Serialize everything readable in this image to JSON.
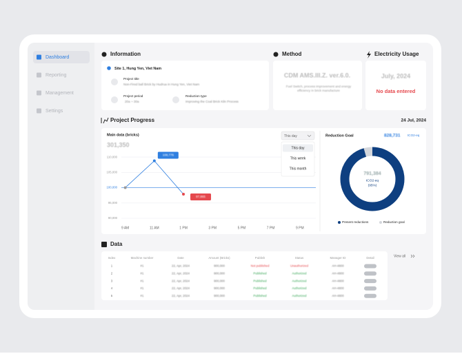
{
  "sidebar": {
    "items": [
      "Dashboard",
      "Reporting",
      "Management",
      "Settings"
    ],
    "active": 0
  },
  "information": {
    "title": "Information",
    "site": "Site 1, Hung Yen, Viet Nam",
    "project_title_label": "Project title",
    "project_title": "Non-Fired ball Brick by Hudrua in Hung Yen, Viet Nam",
    "project_period_label": "Project period",
    "project_period": "20a ~ 30a",
    "reduction_type_label": "Reduction type",
    "reduction_type": "Improving the Coal Brick Kiln Process"
  },
  "method": {
    "title": "Method",
    "name": "CDM AMS.III.Z. ver.6.0.",
    "description": "Fuel Switch, process improvement and energy efficiency in brick manufacture"
  },
  "electricity": {
    "title": "Electricity Usage",
    "month": "July, 2024",
    "status": "No data entered"
  },
  "progress": {
    "title": "Project Progress",
    "date": "24 Jul, 2024",
    "dropdown": {
      "selected": "This day",
      "options": [
        "This day",
        "This week",
        "This month"
      ]
    },
    "chart_data": [
      {
        "type": "line",
        "title": "Main data (bricks)",
        "subtitle": "301,350",
        "x": [
          9,
          11,
          13
        ],
        "values": [
          100000,
          108776,
          97865
        ],
        "value_labels": [
          null,
          "108,776",
          "97,865"
        ],
        "label_colors": [
          null,
          "#2f7fe0",
          "#e5484d"
        ],
        "color": "#2f7fe0",
        "baseline": 100000,
        "xlim": [
          7.5,
          22.1
        ],
        "xticks": [
          {
            "value": 9,
            "label": "9 AM"
          },
          {
            "value": 11,
            "label": "11 AM"
          },
          {
            "value": 13,
            "label": "1 PM"
          },
          {
            "value": 15,
            "label": "3 PM"
          },
          {
            "value": 17,
            "label": "5 PM"
          },
          {
            "value": 19,
            "label": "7 PM"
          },
          {
            "value": 21,
            "label": "9 PM"
          }
        ],
        "ylim": [
          88200,
          115200
        ],
        "yticks": [
          {
            "value": 90000,
            "label": "90,000"
          },
          {
            "value": 95000,
            "label": "95,000"
          },
          {
            "value": 100000,
            "label": "100,000"
          },
          {
            "value": 105000,
            "label": "105,000"
          },
          {
            "value": 110000,
            "label": "110,000"
          }
        ],
        "grid": true
      },
      {
        "type": "donut",
        "title": "Reduction Goal",
        "unit": "tCO2-eq",
        "percent_label": "(95%)",
        "values": [
          791384,
          828731
        ],
        "value_labels": [
          "791,384",
          "828,731"
        ],
        "series": [
          {
            "name": "Present reductions",
            "color": "#0e3f80"
          },
          {
            "name": "Reduction goal",
            "color": "#d4d7dc"
          }
        ]
      }
    ]
  },
  "data": {
    "title": "Data",
    "view_all": "View all",
    "table": {
      "columns": [
        "Index",
        "Machine number",
        "Date",
        "Amount (Bricks)",
        "Publish",
        "Status",
        "Manager ID",
        "Detail"
      ],
      "rows": [
        [
          "1",
          "#1",
          "22, Apr, 2024",
          "900,000",
          "Not published",
          "Unauthorized",
          "AH-4800",
          "Details"
        ],
        [
          "2",
          "#1",
          "22, Apr, 2024",
          "900,000",
          "Published",
          "Authorized",
          "AH-4800",
          "Details"
        ],
        [
          "3",
          "#1",
          "22, Apr, 2024",
          "900,000",
          "Published",
          "Authorized",
          "AH-4800",
          "Details"
        ],
        [
          "4",
          "#1",
          "22, Apr, 2024",
          "900,000",
          "Published",
          "Authorized",
          "AH-4800",
          "Details"
        ],
        [
          "5",
          "#1",
          "22, Apr, 2024",
          "900,000",
          "Published",
          "Authorized",
          "AH-4800",
          "Details"
        ]
      ],
      "row_colors": [
        [
          "#e5484d",
          "#e5484d"
        ],
        [
          "#3aa657",
          "#3aa657"
        ],
        [
          "#3aa657",
          "#3aa657"
        ],
        [
          "#3aa657",
          "#3aa657"
        ],
        [
          "#3aa657",
          "#3aa657"
        ]
      ]
    }
  }
}
